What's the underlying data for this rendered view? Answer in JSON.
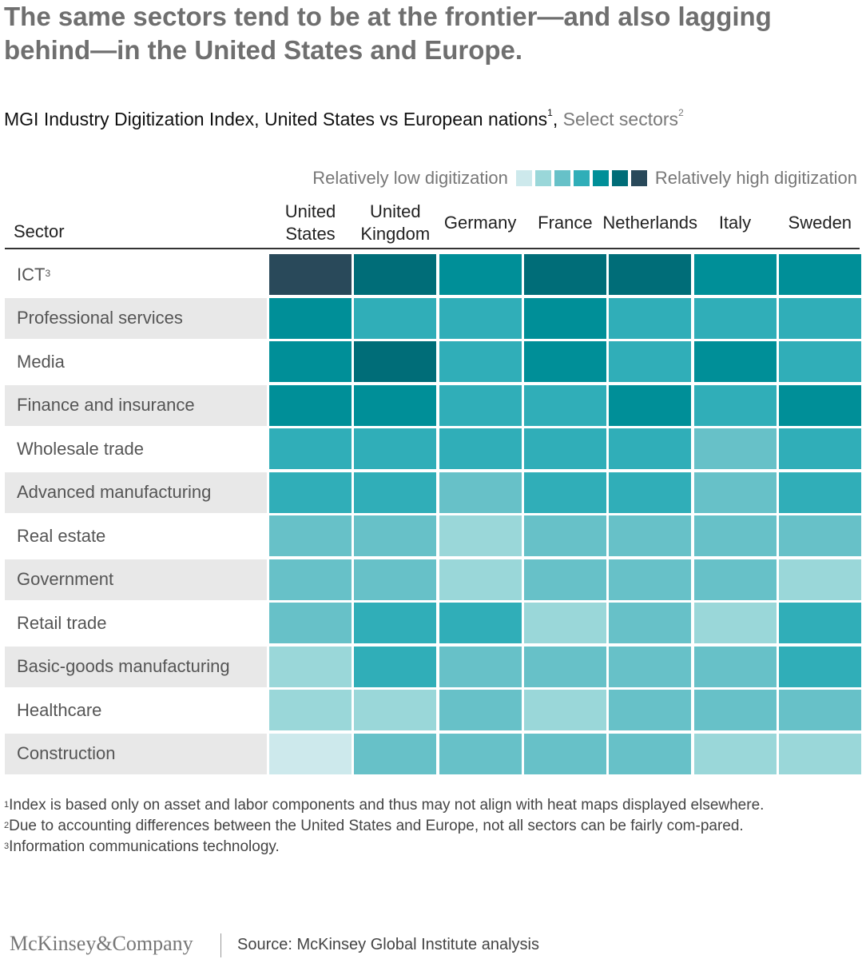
{
  "title": "The same sectors tend to be at the frontier—and also lagging behind—in the United States and Europe.",
  "subtitle": {
    "main": "MGI Industry Digitization Index, United States vs European nations",
    "main_sup": "1",
    "comma": ",",
    "light": " Select sectors",
    "light_sup": "2"
  },
  "legend": {
    "low_label": "Relatively low digitization",
    "high_label": "Relatively high digitization",
    "colors": [
      "#cde9ec",
      "#9ad7d9",
      "#67c1c8",
      "#30aeb8",
      "#008f98",
      "#006d78",
      "#29495a"
    ]
  },
  "chart_data": {
    "type": "heatmap",
    "title": "MGI Industry Digitization Index, United States vs European nations",
    "row_header": "Sector",
    "columns": [
      [
        "United",
        "States"
      ],
      [
        "United",
        "Kingdom"
      ],
      [
        "Germany"
      ],
      [
        "France"
      ],
      [
        "Netherlands"
      ],
      [
        "Italy"
      ],
      [
        "Sweden"
      ]
    ],
    "rows": [
      {
        "label": "ICT",
        "sup": "3",
        "values": [
          7,
          6,
          5,
          6,
          6,
          5,
          5
        ]
      },
      {
        "label": "Professional services",
        "values": [
          5,
          4,
          4,
          5,
          4,
          4,
          4
        ]
      },
      {
        "label": "Media",
        "values": [
          5,
          6,
          4,
          5,
          4,
          5,
          4
        ]
      },
      {
        "label": "Finance and insurance",
        "values": [
          5,
          5,
          4,
          4,
          5,
          4,
          5
        ]
      },
      {
        "label": "Wholesale trade",
        "values": [
          4,
          4,
          4,
          4,
          4,
          3,
          4
        ]
      },
      {
        "label": "Advanced manufacturing",
        "values": [
          4,
          4,
          3,
          4,
          4,
          3,
          4
        ]
      },
      {
        "label": "Real estate",
        "values": [
          3,
          3,
          2,
          3,
          3,
          3,
          3
        ]
      },
      {
        "label": "Government",
        "values": [
          3,
          3,
          2,
          3,
          3,
          3,
          2
        ]
      },
      {
        "label": "Retail trade",
        "values": [
          3,
          4,
          4,
          2,
          3,
          2,
          4
        ]
      },
      {
        "label": "Basic-goods manufacturing",
        "values": [
          2,
          4,
          3,
          3,
          3,
          3,
          4
        ]
      },
      {
        "label": "Healthcare",
        "values": [
          2,
          2,
          3,
          2,
          3,
          3,
          3
        ]
      },
      {
        "label": "Construction",
        "values": [
          1,
          3,
          3,
          3,
          3,
          2,
          2
        ]
      }
    ],
    "scale": "1 = relatively low digitization, 7 = relatively high digitization"
  },
  "footnotes": [
    {
      "sup": "1",
      "text": "Index is based only on asset and labor components and thus may not align with heat maps displayed elsewhere."
    },
    {
      "sup": "2",
      "text": "Due to accounting differences between the United States and Europe, not all sectors can be fairly com-pared."
    },
    {
      "sup": "3",
      "text": "Information communications technology."
    }
  ],
  "footer": {
    "brand": "McKinsey&Company",
    "source": "Source: McKinsey Global Institute analysis"
  }
}
